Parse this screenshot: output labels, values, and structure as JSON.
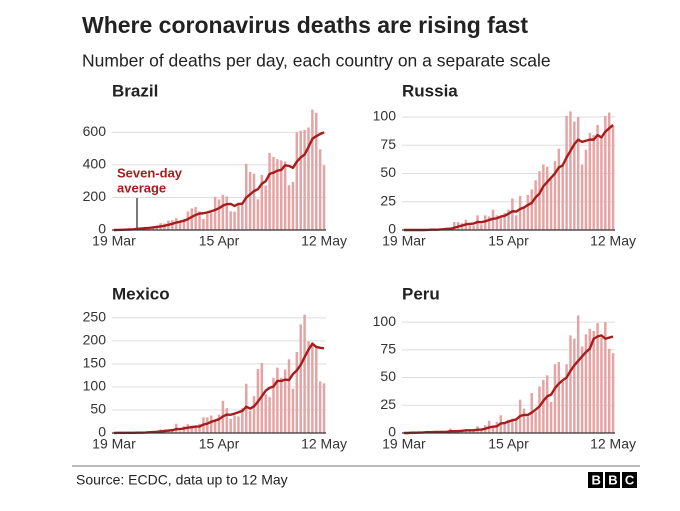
{
  "header": {
    "title": "Where coronavirus deaths are rising fast",
    "subtitle": "Number of deaths per day, each country on a separate scale"
  },
  "footer": {
    "source": "Source: ECDC, data up to 12 May",
    "logo": "BBC"
  },
  "chart_data": [
    {
      "type": "bar",
      "title": "Brazil",
      "annotation": [
        "Seven-day",
        "average"
      ],
      "categories": [
        "19 Mar",
        null,
        null,
        null,
        null,
        null,
        null,
        null,
        null,
        null,
        null,
        null,
        null,
        null,
        null,
        null,
        null,
        null,
        null,
        null,
        null,
        null,
        null,
        null,
        null,
        null,
        null,
        "15 Apr",
        null,
        null,
        null,
        null,
        null,
        null,
        null,
        null,
        null,
        null,
        null,
        null,
        null,
        null,
        null,
        null,
        null,
        null,
        null,
        null,
        null,
        null,
        null,
        null,
        null,
        null,
        "12 May"
      ],
      "ylim": [
        0,
        750
      ],
      "yticks": [
        0,
        200,
        400,
        600
      ],
      "grid": true,
      "series": [
        {
          "type": "bar",
          "color": "#e6a3a3",
          "values": [
            0,
            1,
            3,
            4,
            7,
            9,
            12,
            11,
            20,
            15,
            22,
            23,
            42,
            40,
            58,
            60,
            73,
            54,
            67,
            114,
            133,
            141,
            115,
            68,
            99,
            105,
            204,
            188,
            217,
            206,
            115,
            113,
            166,
            165,
            407,
            357,
            346,
            189,
            338,
            274,
            474,
            449,
            435,
            428,
            421,
            275,
            296,
            600,
            610,
            615,
            630,
            740,
            720,
            496,
            396
          ]
        },
        {
          "type": "line",
          "color": "#a51d1d",
          "values": [
            0,
            0.5,
            1.3,
            2,
            3,
            4,
            7,
            9,
            11,
            13,
            16,
            19,
            22,
            26,
            32,
            38,
            46,
            51,
            57,
            67,
            80,
            93,
            101,
            103,
            108,
            115,
            123,
            134,
            150,
            159,
            160,
            148,
            160,
            162,
            199,
            219,
            239,
            251,
            284,
            300,
            345,
            352,
            365,
            369,
            398,
            394,
            382,
            420,
            446,
            464,
            510,
            560,
            577,
            590,
            600
          ]
        }
      ]
    },
    {
      "type": "bar",
      "title": "Russia",
      "categories": [
        "19 Mar",
        null,
        null,
        null,
        null,
        null,
        null,
        null,
        null,
        null,
        null,
        null,
        null,
        null,
        null,
        null,
        null,
        null,
        null,
        null,
        null,
        null,
        null,
        null,
        null,
        null,
        null,
        "15 Apr",
        null,
        null,
        null,
        null,
        null,
        null,
        null,
        null,
        null,
        null,
        null,
        null,
        null,
        null,
        null,
        null,
        null,
        null,
        null,
        null,
        null,
        null,
        null,
        null,
        null,
        null,
        "12 May"
      ],
      "ylim": [
        0,
        108
      ],
      "yticks": [
        0,
        25,
        50,
        75,
        100
      ],
      "grid": true,
      "series": [
        {
          "type": "bar",
          "color": "#e6a3a3",
          "values": [
            0,
            0,
            0,
            0,
            0,
            0,
            1,
            1,
            0,
            1,
            1,
            2,
            2,
            7,
            7,
            6,
            9,
            4,
            4,
            13,
            5,
            13,
            12,
            18,
            13,
            12,
            15,
            18,
            28,
            13,
            30,
            20,
            31,
            36,
            44,
            52,
            58,
            56,
            45,
            61,
            72,
            57,
            101,
            105,
            96,
            100,
            58,
            71,
            86,
            84,
            93,
            83,
            101,
            104,
            92
          ]
        },
        {
          "type": "line",
          "color": "#a51d1d",
          "values": [
            0,
            0,
            0,
            0,
            0,
            0,
            0.1,
            0.3,
            0.3,
            0.4,
            0.6,
            0.9,
            1.1,
            2,
            3,
            3.9,
            5,
            5.4,
            5.7,
            7.1,
            6.9,
            7.7,
            8.9,
            9.9,
            10.4,
            11.9,
            12.6,
            14.4,
            16.6,
            16.3,
            18.6,
            19.9,
            22.1,
            24,
            28.9,
            32.3,
            38.7,
            42.4,
            46.3,
            50.1,
            55.4,
            57.3,
            64.3,
            70,
            76,
            80,
            78,
            79,
            80,
            80,
            84,
            82,
            87,
            90,
            93
          ]
        }
      ]
    },
    {
      "type": "bar",
      "title": "Mexico",
      "categories": [
        "19 Mar",
        null,
        null,
        null,
        null,
        null,
        null,
        null,
        null,
        null,
        null,
        null,
        null,
        null,
        null,
        null,
        null,
        null,
        null,
        null,
        null,
        null,
        null,
        null,
        null,
        null,
        null,
        "15 Apr",
        null,
        null,
        null,
        null,
        null,
        null,
        null,
        null,
        null,
        null,
        null,
        null,
        null,
        null,
        null,
        null,
        null,
        null,
        null,
        null,
        null,
        null,
        null,
        null,
        null,
        null,
        "12 May"
      ],
      "ylim": [
        0,
        265
      ],
      "yticks": [
        0,
        50,
        100,
        150,
        200,
        250
      ],
      "grid": true,
      "series": [
        {
          "type": "bar",
          "color": "#e6a3a3",
          "values": [
            0,
            1,
            0,
            0,
            1,
            1,
            2,
            0,
            3,
            4,
            4,
            4,
            8,
            8,
            6,
            9,
            20,
            4,
            15,
            19,
            16,
            14,
            20,
            34,
            34,
            38,
            26,
            40,
            70,
            54,
            31,
            38,
            36,
            54,
            107,
            48,
            80,
            139,
            152,
            84,
            78,
            120,
            142,
            120,
            138,
            160,
            96,
            176,
            236,
            257,
            199,
            197,
            185,
            112,
            108
          ]
        },
        {
          "type": "line",
          "color": "#a51d1d",
          "values": [
            0,
            0.5,
            0.3,
            0.3,
            0.4,
            0.5,
            0.7,
            0.7,
            1,
            1.6,
            2.1,
            2.6,
            3.4,
            4.3,
            5.3,
            6,
            8.4,
            8.4,
            10,
            11.6,
            12.7,
            13.9,
            14.1,
            18.3,
            20.3,
            24.1,
            27,
            30,
            36,
            40,
            39.6,
            42,
            45,
            48,
            57,
            53,
            58,
            68,
            80,
            92,
            98,
            101,
            113,
            113,
            116,
            115,
            128,
            136,
            148,
            165,
            181,
            194,
            187,
            185,
            184
          ]
        }
      ]
    },
    {
      "type": "bar",
      "title": "Peru",
      "categories": [
        "19 Mar",
        null,
        null,
        null,
        null,
        null,
        null,
        null,
        null,
        null,
        null,
        null,
        null,
        null,
        null,
        null,
        null,
        null,
        null,
        null,
        null,
        null,
        null,
        null,
        null,
        null,
        null,
        "15 Apr",
        null,
        null,
        null,
        null,
        null,
        null,
        null,
        null,
        null,
        null,
        null,
        null,
        null,
        null,
        null,
        null,
        null,
        null,
        null,
        null,
        null,
        null,
        null,
        null,
        null,
        null,
        "12 May"
      ],
      "ylim": [
        0,
        110
      ],
      "yticks": [
        0,
        25,
        50,
        75,
        100
      ],
      "grid": true,
      "series": [
        {
          "type": "bar",
          "color": "#e6a3a3",
          "values": [
            0,
            0,
            1,
            0,
            1,
            1,
            2,
            0,
            1,
            0,
            2,
            1,
            4,
            2,
            2,
            3,
            3,
            3,
            2,
            6,
            3,
            7,
            11,
            6,
            10,
            16,
            9,
            12,
            13,
            12,
            30,
            22,
            15,
            36,
            19,
            42,
            48,
            52,
            28,
            62,
            64,
            46,
            62,
            88,
            85,
            106,
            78,
            89,
            94,
            92,
            99,
            86,
            100,
            76,
            72
          ]
        },
        {
          "type": "line",
          "color": "#a51d1d",
          "values": [
            0,
            0,
            0.3,
            0.3,
            0.4,
            0.5,
            0.7,
            0.7,
            0.9,
            0.9,
            1,
            1,
            1.6,
            1.6,
            1.7,
            2,
            2.4,
            2.4,
            2.4,
            3,
            3.1,
            3.9,
            5,
            5.7,
            6,
            8.6,
            9,
            10.3,
            11.4,
            12.3,
            15.3,
            16.3,
            16.3,
            18.4,
            21,
            24,
            29,
            33,
            34.6,
            40.4,
            44.5,
            47.5,
            50,
            56,
            61,
            65,
            69,
            73,
            76,
            85,
            87,
            88,
            85,
            86,
            87
          ]
        }
      ]
    }
  ]
}
